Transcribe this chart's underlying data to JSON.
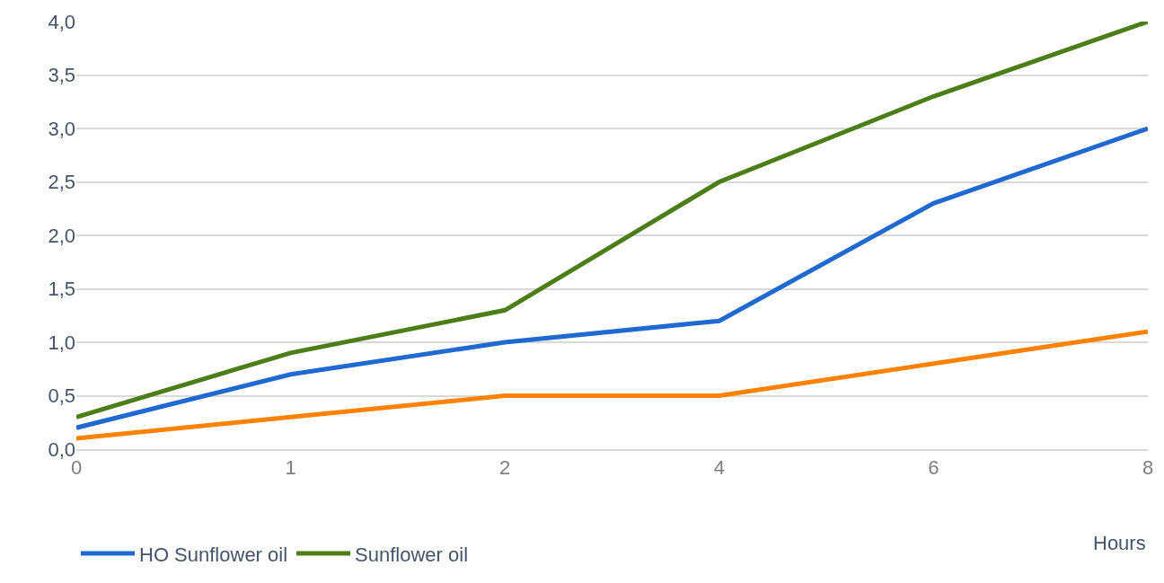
{
  "chart_data": {
    "type": "line",
    "xlabel": "Hours",
    "categories": [
      "0",
      "1",
      "2",
      "4",
      "6",
      "8"
    ],
    "series": [
      {
        "name": "HO Sunflower oil",
        "color": "#1f69d0",
        "values": [
          0.2,
          0.7,
          1.0,
          1.2,
          2.3,
          3.0
        ]
      },
      {
        "name": "Sunflower oil",
        "color": "#4b7d18",
        "values": [
          0.3,
          0.9,
          1.3,
          2.5,
          3.3,
          4.0
        ]
      },
      {
        "color": "#ff8205",
        "values": [
          0.1,
          0.3,
          0.5,
          0.5,
          0.8,
          1.1
        ]
      }
    ],
    "ylim": [
      0,
      4
    ],
    "yticks": [
      {
        "value": 0,
        "label": "0,0"
      },
      {
        "value": 0.5,
        "label": "0,5"
      },
      {
        "value": 1,
        "label": "1,0"
      },
      {
        "value": 1.5,
        "label": "1,5"
      },
      {
        "value": 2,
        "label": "2,0"
      },
      {
        "value": 2.5,
        "label": "2,5"
      },
      {
        "value": 3,
        "label": "3,0"
      },
      {
        "value": 3.5,
        "label": "3,5"
      },
      {
        "value": 4,
        "label": "4,0"
      }
    ],
    "grid": "y",
    "legend": "bottom",
    "marker": "none",
    "line_style": "solid"
  }
}
